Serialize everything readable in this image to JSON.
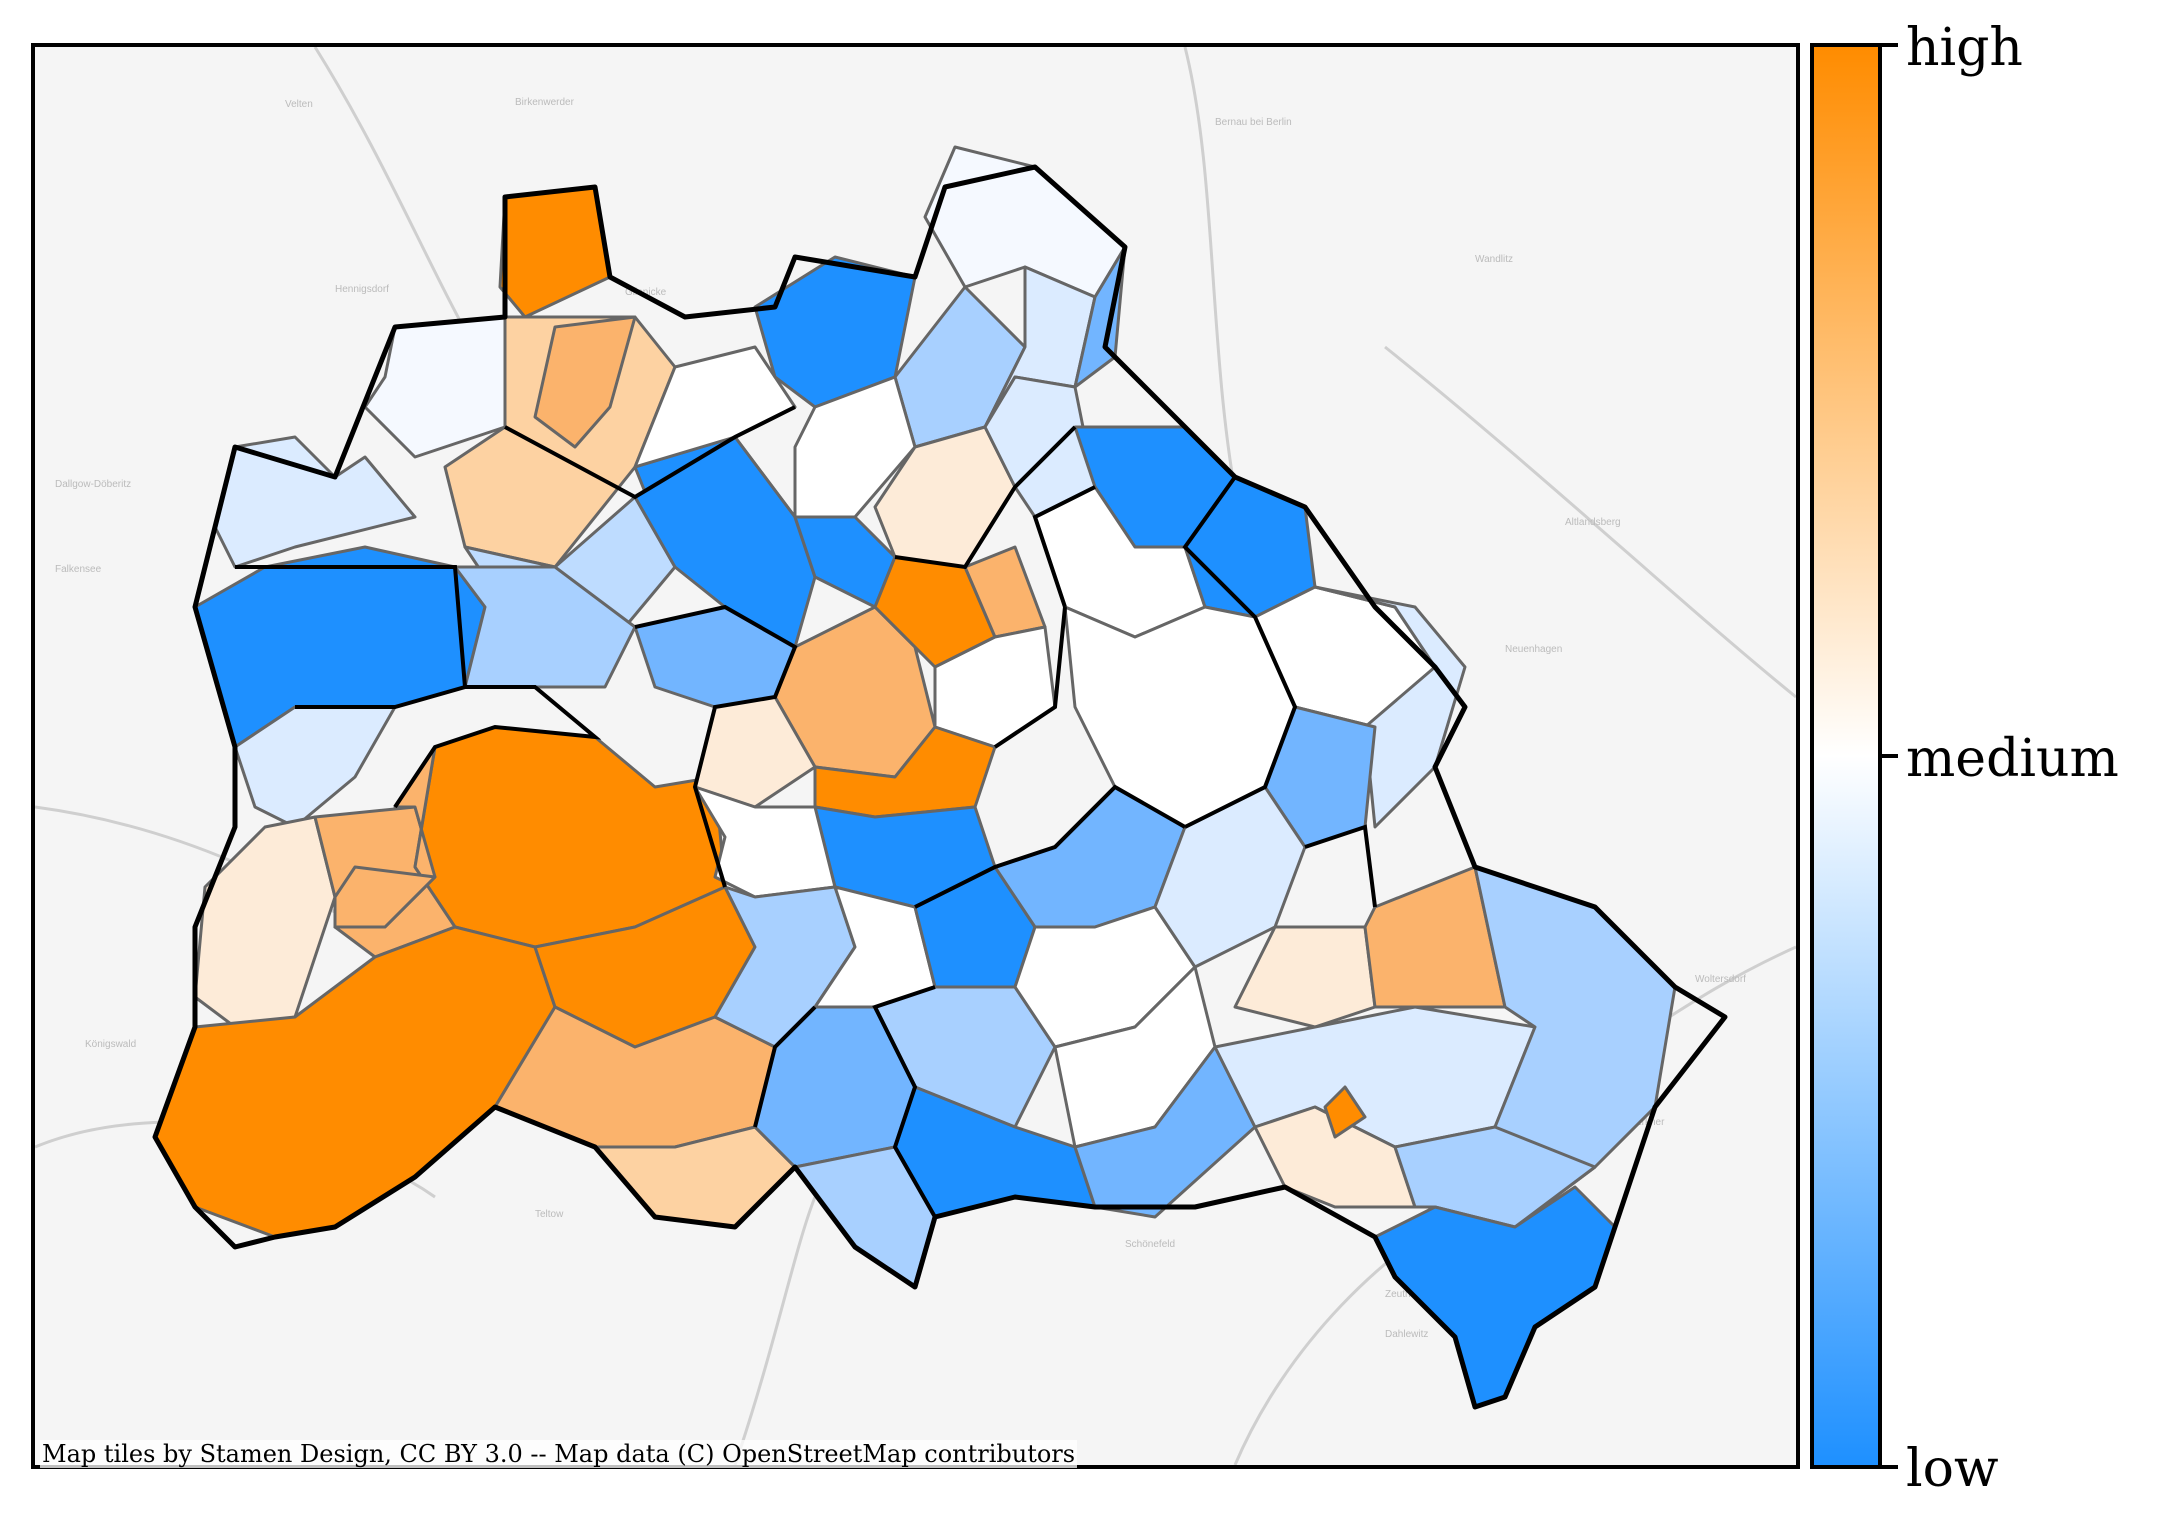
{
  "attribution": "Map tiles by Stamen Design, CC BY 3.0 -- Map data (C) OpenStreetMap contributors",
  "colorbar": {
    "labels": {
      "high": "high",
      "medium": "medium",
      "low": "low"
    },
    "colors": {
      "high": "#ff8c00",
      "medium": "#ffffff",
      "low": "#1e90ff"
    }
  },
  "basemap_labels": [
    "Velten",
    "Birkenwerder",
    "Bernau bei Berlin",
    "Hennigsdorf",
    "Glienicke",
    "Falkensee",
    "Dallgow-Döberitz",
    "Wandlitz",
    "Altlandsberg",
    "Neuenhagen",
    "Königswald",
    "Teltow",
    "Schönefeld",
    "Zeuthen",
    "Erkner",
    "Woltersdorf",
    "Dahlewitz"
  ],
  "colors": {
    "boundary": "#000000",
    "district_line": "#666666",
    "roads": "#c8c8c8"
  }
}
